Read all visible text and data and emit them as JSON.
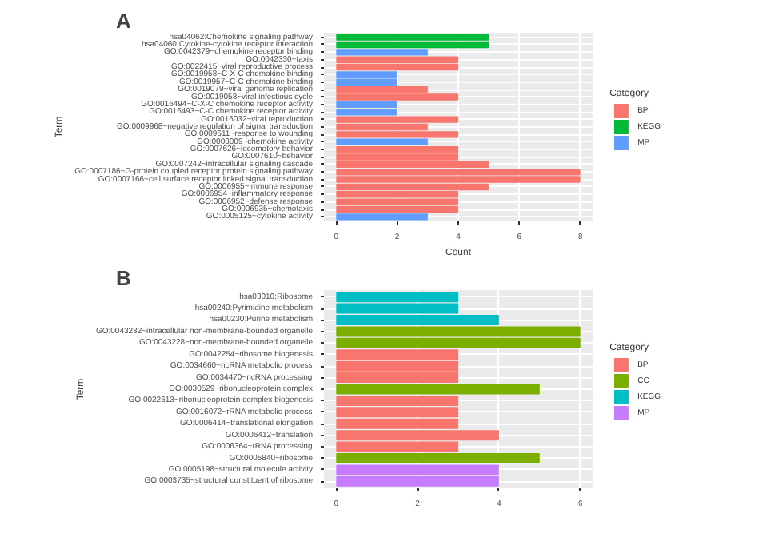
{
  "chart_data": [
    {
      "type": "bar",
      "orientation": "horizontal",
      "title": "A",
      "xlabel": "Count",
      "ylabel": "Term",
      "legend_title": "Category",
      "legend": "right",
      "grid": true,
      "categories": [
        "hsa04062:Chemokine signaling pathway",
        "hsa04060:Cytokine-cytokine receptor interaction",
        "GO:0042379~chemokine receptor binding",
        "GO:0042330~taxis",
        "GO:0022415~viral reproductive process",
        "GO:0019958~C-X-C chemokine binding",
        "GO:0019957~C-C chemokine binding",
        "GO:0019079~viral genome replication",
        "GO:0019058~viral infectious cycle",
        "GO:0016494~C-X-C chemokine receptor activity",
        "GO:0016493~C-C chemokine receptor activity",
        "GO:0016032~viral reproduction",
        "GO:0009968~negative regulation of signal transduction",
        "GO:0009611~response to wounding",
        "GO:0008009~chemokine activity",
        "GO:0007626~locomotory behavior",
        "GO:0007610~behavior",
        "GO:0007242~intracellular signaling cascade",
        "GO:0007186~G-protein coupled receptor protein signaling pathway",
        "GO:0007166~cell surface receptor linked signal transduction",
        "GO:0006955~immune response",
        "GO:0006954~inflammatory response",
        "GO:0006952~defense response",
        "GO:0006935~chemotaxis",
        "GO:0005125~cytokine activity"
      ],
      "series": [
        {
          "name": "BP",
          "color": "#f8766d",
          "values": [
            null,
            null,
            null,
            4,
            4,
            null,
            null,
            3,
            4,
            null,
            null,
            4,
            3,
            4,
            null,
            4,
            4,
            5,
            8,
            8,
            5,
            4,
            4,
            4,
            null
          ]
        },
        {
          "name": "KEGG",
          "color": "#00ba38",
          "values": [
            5,
            5,
            null,
            null,
            null,
            null,
            null,
            null,
            null,
            null,
            null,
            null,
            null,
            null,
            null,
            null,
            null,
            null,
            null,
            null,
            null,
            null,
            null,
            null,
            null
          ]
        },
        {
          "name": "MP",
          "color": "#619cff",
          "values": [
            null,
            null,
            3,
            null,
            null,
            2,
            2,
            null,
            null,
            2,
            2,
            null,
            null,
            null,
            3,
            null,
            null,
            null,
            null,
            null,
            null,
            null,
            null,
            null,
            3
          ]
        }
      ],
      "xlim": [
        -0.4,
        8.4
      ],
      "xticks": [
        0,
        2,
        4,
        6,
        8
      ]
    },
    {
      "type": "bar",
      "orientation": "horizontal",
      "title": "B",
      "ylabel": "Term",
      "legend_title": "Category",
      "legend": "right",
      "grid": true,
      "categories": [
        "hsa03010:Ribosome",
        "hsa00240:Pyrimidine metabolism",
        "hsa00230:Purine metabolism",
        "GO:0043232~intracellular non-membrane-bounded organelle",
        "GO:0043228~non-membrane-bounded organelle",
        "GO:0042254~ribosome biogenesis",
        "GO:0034660~ncRNA metabolic process",
        "GO:0034470~ncRNA processing",
        "GO:0030529~ribonucleoprotein complex",
        "GO:0022613~ribonucleoprotein complex biogenesis",
        "GO:0016072~rRNA metabolic process",
        "GO:0006414~translational elongation",
        "GO:0006412~translation",
        "GO:0006364~rRNA processing",
        "GO:0005840~ribosome",
        "GO:0005198~structural molecule activity",
        "GO:0003735~structural constituent of ribosome"
      ],
      "series": [
        {
          "name": "BP",
          "color": "#f8766d",
          "values": [
            null,
            null,
            null,
            null,
            null,
            3,
            3,
            3,
            null,
            3,
            3,
            3,
            4,
            3,
            null,
            null,
            null
          ]
        },
        {
          "name": "CC",
          "color": "#7cae00",
          "values": [
            null,
            null,
            null,
            6,
            6,
            null,
            null,
            null,
            5,
            null,
            null,
            null,
            null,
            null,
            5,
            null,
            null
          ]
        },
        {
          "name": "KEGG",
          "color": "#00bfc4",
          "values": [
            3,
            3,
            4,
            null,
            null,
            null,
            null,
            null,
            null,
            null,
            null,
            null,
            null,
            null,
            null,
            null,
            null
          ]
        },
        {
          "name": "MP",
          "color": "#c77cff",
          "values": [
            null,
            null,
            null,
            null,
            null,
            null,
            null,
            null,
            null,
            null,
            null,
            null,
            null,
            null,
            null,
            4,
            4
          ]
        }
      ],
      "xlim": [
        -0.3,
        6.3
      ],
      "xticks": [
        0,
        2,
        4,
        6
      ]
    }
  ]
}
